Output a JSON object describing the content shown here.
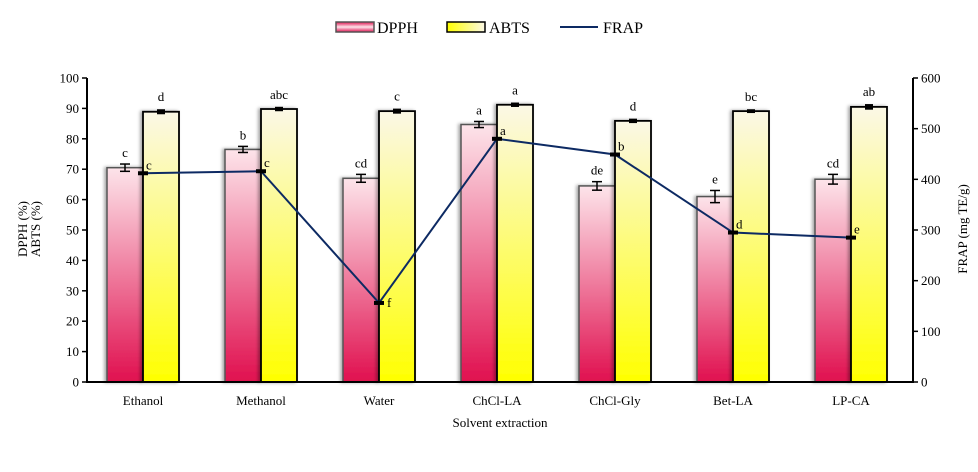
{
  "chart_data": {
    "type": "bar",
    "title": "",
    "xlabel": "Solvent extraction",
    "ylabel": "DPPH (%)\nABTS (%)",
    "ylabel_lines": [
      "DPPH (%)",
      "ABTS (%)"
    ],
    "y2label": "FRAP (mg TE/g)",
    "ylim": [
      0,
      100
    ],
    "y2lim": [
      0,
      600
    ],
    "yticks": [
      0,
      10,
      20,
      30,
      40,
      50,
      60,
      70,
      80,
      90,
      100
    ],
    "y2ticks": [
      0,
      100,
      200,
      300,
      400,
      500,
      600
    ],
    "grid": false,
    "legend_position": "top-center",
    "categories": [
      "Ethanol",
      "Methanol",
      "Water",
      "ChCl-LA",
      "ChCl-Gly",
      "Bet-LA",
      "LP-CA"
    ],
    "series": [
      {
        "name": "DPPH",
        "type": "bar",
        "axis": "left",
        "values": [
          70.5,
          76.5,
          67.0,
          84.7,
          64.5,
          61.0,
          66.7
        ],
        "errors": [
          1.2,
          1.0,
          1.3,
          1.0,
          1.4,
          2.0,
          1.6
        ],
        "letters": [
          "c",
          "b",
          "cd",
          "a",
          "de",
          "e",
          "cd"
        ],
        "color_top": "#fde4ea",
        "color_bottom": "#e0104f"
      },
      {
        "name": "ABTS",
        "type": "bar",
        "axis": "left",
        "values": [
          88.9,
          89.8,
          89.1,
          91.2,
          85.9,
          89.1,
          90.5
        ],
        "errors": [
          0.5,
          0.4,
          0.5,
          0.4,
          0.4,
          0.3,
          0.6
        ],
        "letters": [
          "d",
          "abc",
          "c",
          "a",
          "d",
          "bc",
          "ab"
        ],
        "color_top": "#fbf8e6",
        "color_bottom": "#ffff00"
      },
      {
        "name": "FRAP",
        "type": "line",
        "axis": "right",
        "values": [
          412,
          416,
          156,
          480,
          449,
          295,
          285
        ],
        "letters": [
          "c",
          "c",
          "f",
          "a",
          "b",
          "d",
          "e"
        ],
        "color": "#0d2a63"
      }
    ]
  }
}
